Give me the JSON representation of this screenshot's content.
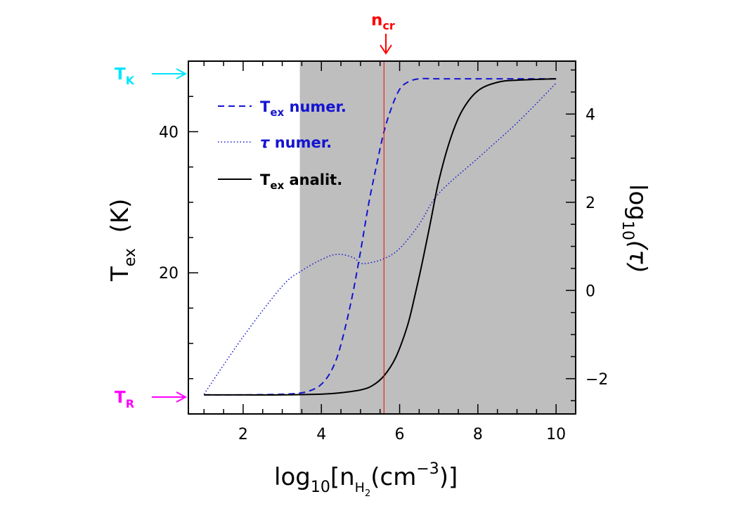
{
  "chart_data": {
    "type": "line",
    "xlabel": {
      "main": "log",
      "sub1": "10",
      "bracket_open": "[",
      "n": "n",
      "nsub": "H",
      "nsub2": "2",
      "paren_open": "(cm",
      "sup": "−3",
      "paren_close": ")]"
    },
    "ylabel_left": {
      "main": "T",
      "sub": "ex",
      "rest": "  (K)"
    },
    "ylabel_right": {
      "main": "log",
      "sub": "10",
      "rest": "(τ)"
    },
    "xlim": [
      0.6,
      10.5
    ],
    "ylim_left": [
      0,
      50
    ],
    "ylim_right": [
      -2.8,
      5.2
    ],
    "x_ticks": [
      2,
      4,
      6,
      8,
      10
    ],
    "x_tick_labels": [
      "2",
      "4",
      "6",
      "8",
      "10"
    ],
    "y_left_ticks": [
      20,
      40
    ],
    "y_left_tick_labels": [
      "20",
      "40"
    ],
    "y_right_ticks": [
      -2,
      0,
      2,
      4
    ],
    "y_right_tick_labels": [
      "−2",
      "0",
      "2",
      "4"
    ],
    "shaded_region": {
      "x_from": 3.45,
      "x_to": 10.5,
      "color": "#bebebe"
    },
    "critical_density": {
      "x": 5.6,
      "label_main": "n",
      "label_sub": "cr",
      "color": "#ff0000"
    },
    "markers": [
      {
        "name": "T_K",
        "label_main": "T",
        "label_sub": "K",
        "y": 47.5,
        "color": "#00e5ff"
      },
      {
        "name": "T_R",
        "label_main": "T",
        "label_sub": "R",
        "y": 2.7,
        "color": "#ff00ff"
      }
    ],
    "legend": {
      "placement": "top-left",
      "entries": [
        {
          "main": "T",
          "sub": "ex",
          "rest": " numer.",
          "style": "dashed",
          "color": "#1414d2"
        },
        {
          "main": "τ",
          "sub": "",
          "rest": " numer.",
          "style": "dotted",
          "color": "#1414d2"
        },
        {
          "main": "T",
          "sub": "ex",
          "rest": " analit.",
          "style": "solid",
          "color": "#000000"
        }
      ]
    },
    "series": [
      {
        "style": "dashed",
        "color": "#1414d2",
        "axis": "left",
        "x": [
          1.0,
          2.0,
          3.0,
          3.5,
          3.8,
          4.0,
          4.2,
          4.4,
          4.6,
          4.8,
          5.0,
          5.2,
          5.4,
          5.6,
          5.8,
          6.0,
          6.2,
          6.5,
          7.0,
          8.0,
          9.0,
          10.0
        ],
        "y": [
          2.7,
          2.7,
          2.8,
          3.0,
          3.5,
          4.2,
          5.6,
          8.0,
          12.0,
          17.0,
          23.0,
          29.5,
          35.0,
          40.0,
          43.5,
          46.0,
          47.0,
          47.5,
          47.5,
          47.5,
          47.5,
          47.5
        ]
      },
      {
        "style": "dotted",
        "color": "#1414d2",
        "axis": "right",
        "x": [
          1.0,
          2.0,
          3.0,
          3.5,
          4.0,
          4.4,
          4.8,
          5.0,
          5.2,
          5.6,
          6.0,
          6.5,
          7.0,
          8.0,
          9.0,
          10.0
        ],
        "y": [
          -2.35,
          -1.05,
          0.1,
          0.45,
          0.7,
          0.82,
          0.75,
          0.62,
          0.62,
          0.72,
          0.95,
          1.5,
          2.2,
          3.0,
          3.8,
          4.7
        ]
      },
      {
        "style": "solid",
        "color": "#000000",
        "axis": "left",
        "x": [
          1.0,
          2.0,
          3.0,
          4.0,
          4.5,
          5.0,
          5.3,
          5.6,
          5.9,
          6.2,
          6.4,
          6.6,
          6.8,
          7.0,
          7.3,
          7.6,
          8.0,
          8.5,
          9.0,
          10.0
        ],
        "y": [
          2.7,
          2.7,
          2.7,
          2.8,
          3.0,
          3.4,
          4.0,
          5.4,
          8.0,
          12.5,
          17.0,
          22.0,
          27.5,
          33.0,
          39.0,
          43.0,
          45.8,
          47.0,
          47.3,
          47.5
        ]
      }
    ]
  }
}
